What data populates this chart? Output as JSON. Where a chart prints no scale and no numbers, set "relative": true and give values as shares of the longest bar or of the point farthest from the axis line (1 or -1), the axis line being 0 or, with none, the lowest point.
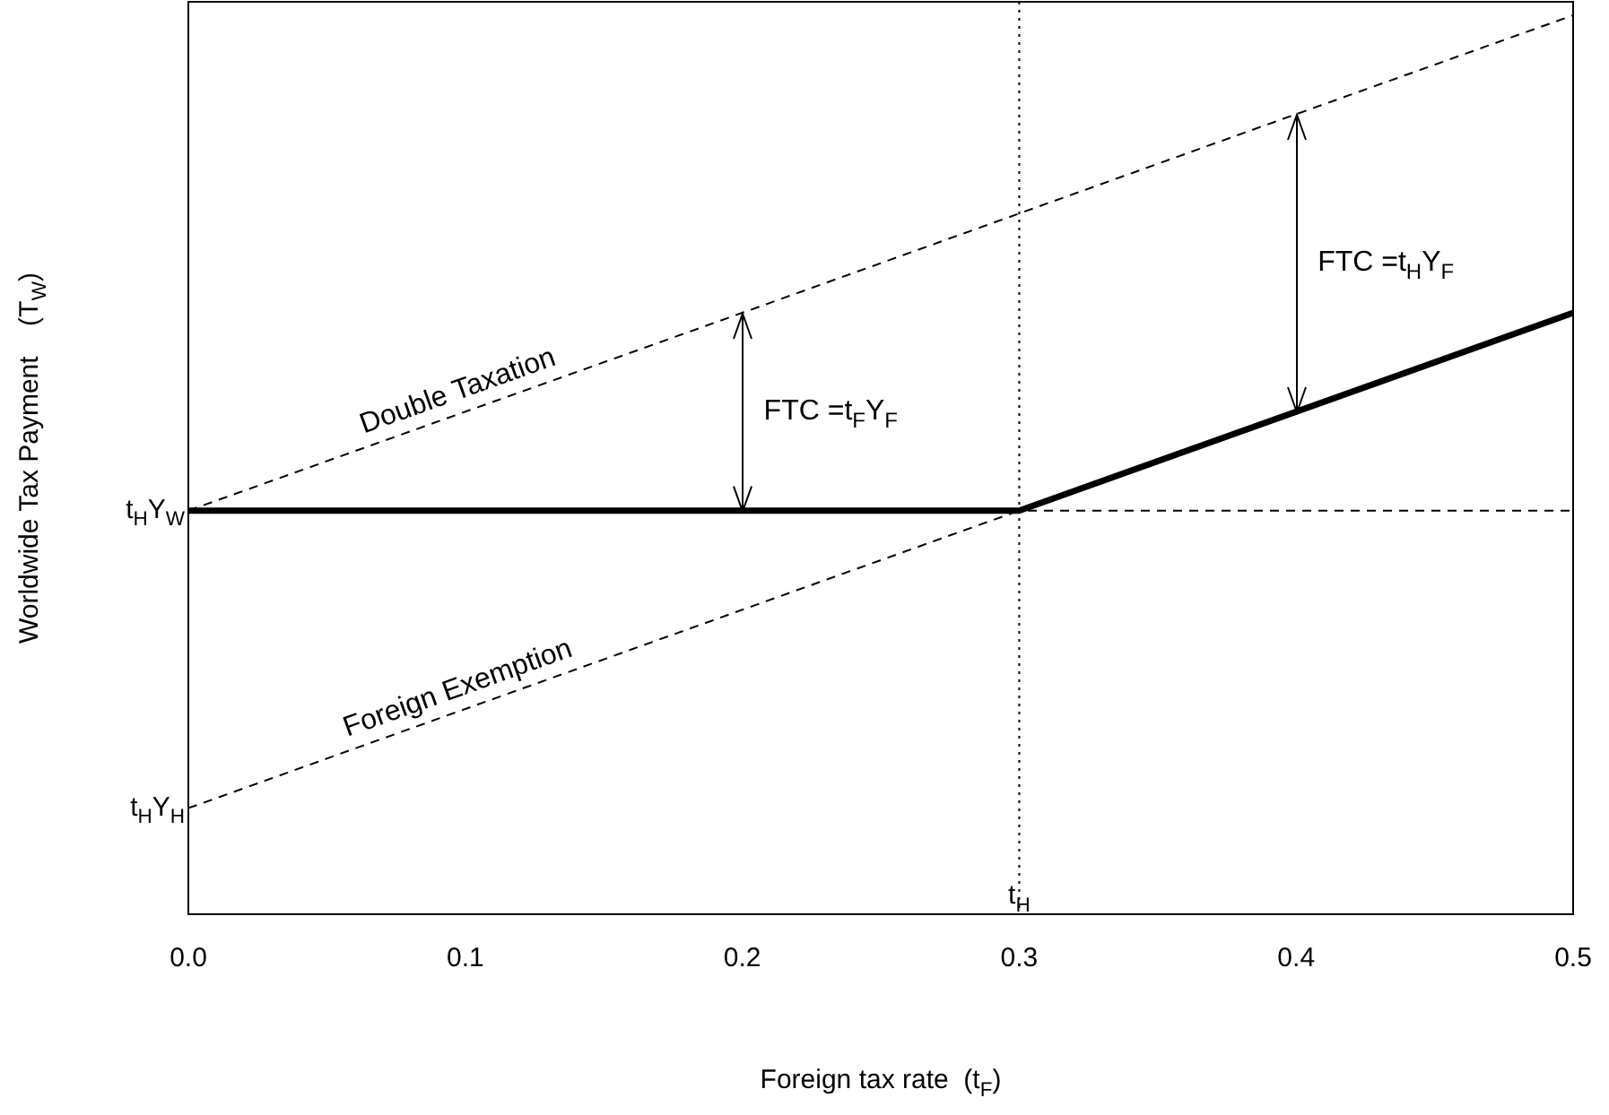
{
  "chart_data": {
    "type": "line",
    "xlabel": "Foreign tax rate  (t$_{F}$)",
    "ylabel": "Worldwide Tax Payment    (T$_{W}$)",
    "relative": true,
    "series": [
      {
        "name": "Double Taxation",
        "color": "#000000",
        "x": [
          0,
          0.2,
          0.4,
          0.5
        ],
        "values": [
          0.449,
          0.669,
          0.89,
          1
        ],
        "line_style": "dashed"
      },
      {
        "name": "Foreign Exemption",
        "color": "#000000",
        "x": [
          0,
          0.3
        ],
        "values": [
          0.118,
          0.449
        ],
        "line_style": "dashed"
      },
      {
        "color": "#000000",
        "x": [
          0,
          0.3,
          0.5
        ],
        "values": [
          0.449,
          0.449,
          0.669
        ],
        "line_style": "solid"
      }
    ],
    "xlim": [
      0,
      0.5
    ],
    "xticks": [
      {
        "value": 0,
        "label": "0.0"
      },
      {
        "value": 0.1,
        "label": "0.1"
      },
      {
        "value": 0.2,
        "label": "0.2"
      },
      {
        "value": 0.3,
        "label": "0.3"
      },
      {
        "value": 0.4,
        "label": "0.4"
      },
      {
        "value": 0.5,
        "label": "0.5"
      }
    ],
    "ref_lines": [
      {
        "axis": "x",
        "value": 0.3,
        "label": "t$_{H}$",
        "line_style": "dotted"
      },
      {
        "axis": "y",
        "value": 0.449,
        "line_style": "dashed"
      }
    ],
    "annotations": [
      {
        "text": "t$_{H}$Y$_{W}$",
        "x": 0,
        "y": 0.449
      },
      {
        "text": "t$_{H}$Y$_{H}$",
        "x": 0,
        "y": 0.118
      },
      "FTC =t$_{F}$Y$_{F}$",
      "FTC =t$_{H}$Y$_{F}$"
    ],
    "grid": false,
    "legend": false,
    "marker": "none"
  }
}
